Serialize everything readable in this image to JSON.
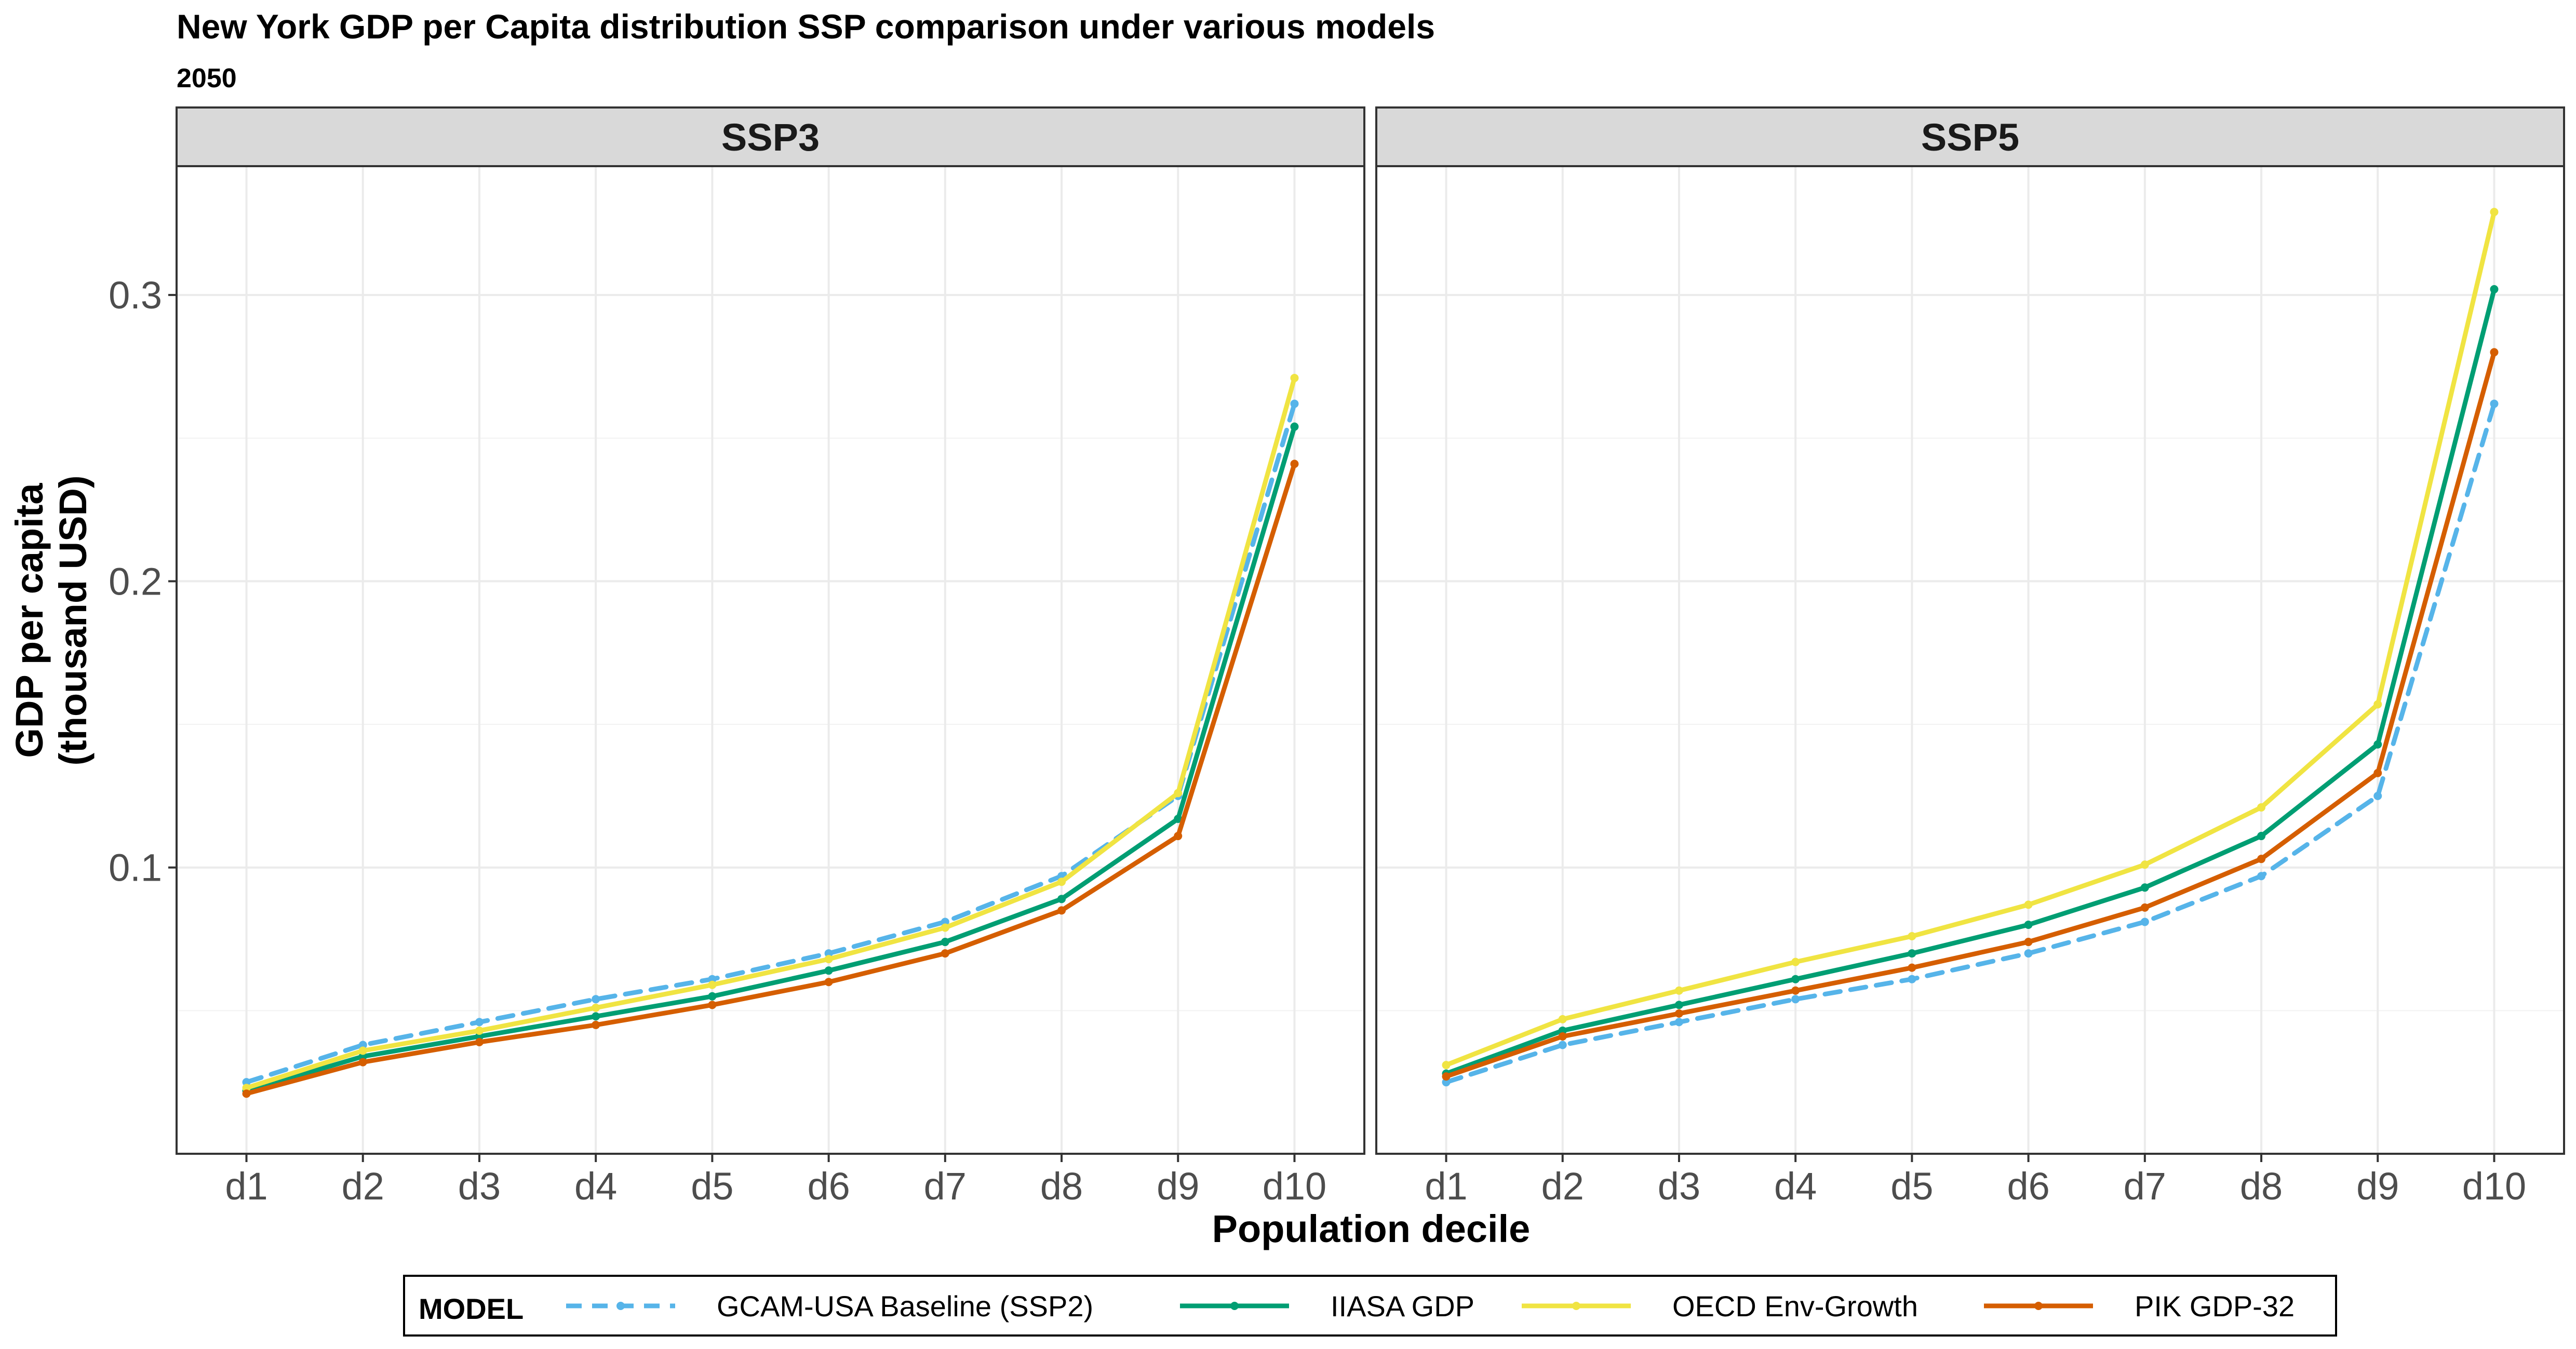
{
  "title": "New York GDP per Capita distribution SSP comparison under various models",
  "subtitle": "2050",
  "chart_data": {
    "type": "line",
    "xlabel": "Population decile",
    "ylabel_line1": "GDP per capita",
    "ylabel_line2": "(thousand USD)",
    "categories": [
      "d1",
      "d2",
      "d3",
      "d4",
      "d5",
      "d6",
      "d7",
      "d8",
      "d9",
      "d10"
    ],
    "ylim": [
      0.0,
      0.345
    ],
    "yticks": [
      0.1,
      0.2,
      0.3
    ],
    "ytick_labels": [
      "0.1",
      "0.2",
      "0.3"
    ],
    "grid": true,
    "legend_position": "bottom",
    "legend_title": "MODEL",
    "series_styles": [
      {
        "name": "GCAM-USA Baseline (SSP2)",
        "color": "#56B4E9",
        "dashed": true
      },
      {
        "name": "IIASA GDP",
        "color": "#009E73",
        "dashed": false
      },
      {
        "name": "OECD Env-Growth",
        "color": "#F0E442",
        "dashed": false
      },
      {
        "name": "PIK GDP-32",
        "color": "#D55E00",
        "dashed": false
      }
    ],
    "panels": [
      {
        "label": "SSP3",
        "series": [
          {
            "name": "GCAM-USA Baseline (SSP2)",
            "values": [
              0.025,
              0.038,
              0.046,
              0.054,
              0.061,
              0.07,
              0.081,
              0.097,
              0.125,
              0.262
            ]
          },
          {
            "name": "IIASA GDP",
            "values": [
              0.022,
              0.034,
              0.041,
              0.048,
              0.055,
              0.064,
              0.074,
              0.089,
              0.117,
              0.254
            ]
          },
          {
            "name": "OECD Env-Growth",
            "values": [
              0.023,
              0.036,
              0.043,
              0.051,
              0.059,
              0.068,
              0.079,
              0.095,
              0.126,
              0.271
            ]
          },
          {
            "name": "PIK GDP-32",
            "values": [
              0.021,
              0.032,
              0.039,
              0.045,
              0.052,
              0.06,
              0.07,
              0.085,
              0.111,
              0.241
            ]
          }
        ]
      },
      {
        "label": "SSP5",
        "series": [
          {
            "name": "GCAM-USA Baseline (SSP2)",
            "values": [
              0.025,
              0.038,
              0.046,
              0.054,
              0.061,
              0.07,
              0.081,
              0.097,
              0.125,
              0.262
            ]
          },
          {
            "name": "IIASA GDP",
            "values": [
              0.028,
              0.043,
              0.052,
              0.061,
              0.07,
              0.08,
              0.093,
              0.111,
              0.143,
              0.302
            ]
          },
          {
            "name": "OECD Env-Growth",
            "values": [
              0.031,
              0.047,
              0.057,
              0.067,
              0.076,
              0.087,
              0.101,
              0.121,
              0.157,
              0.329
            ]
          },
          {
            "name": "PIK GDP-32",
            "values": [
              0.027,
              0.041,
              0.049,
              0.057,
              0.065,
              0.074,
              0.086,
              0.103,
              0.133,
              0.28
            ]
          }
        ]
      }
    ]
  }
}
